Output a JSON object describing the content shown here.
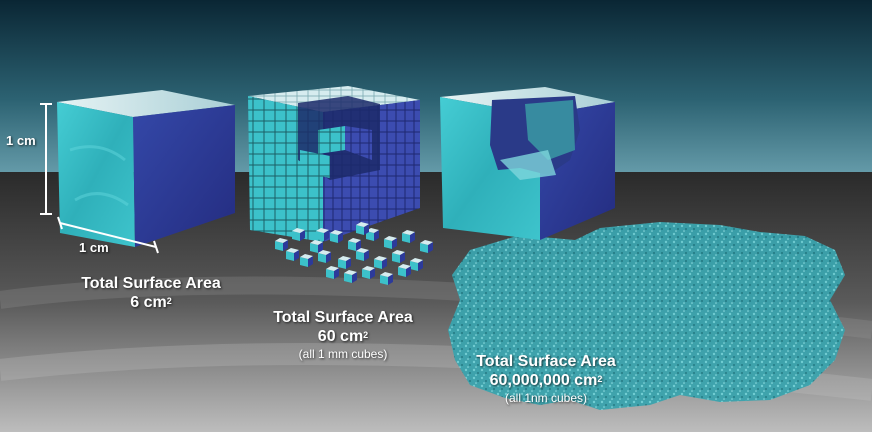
{
  "dimensions": {
    "height": "1 cm",
    "width": "1 cm"
  },
  "panels": [
    {
      "id": "single-cube",
      "title": "Total Surface Area",
      "value": "6 cm",
      "exponent": "2",
      "note": ""
    },
    {
      "id": "mm-cubes",
      "title": "Total Surface Area",
      "value": "60 cm",
      "exponent": "2",
      "note": "(all 1 mm cubes)"
    },
    {
      "id": "nm-cubes",
      "title": "Total Surface Area",
      "value": "60,000,000 cm",
      "exponent": "2",
      "note": "(all 1nm cubes)"
    }
  ],
  "colors": {
    "sky_top": "#0c2a3a",
    "sky_bottom": "#4d8a9a",
    "floor": "#4a4a4a",
    "cube_front": "#3bc4cc",
    "cube_side": "#2c3a9a",
    "cube_top": "#cfe9ec",
    "powder": "#3aa3ad"
  }
}
